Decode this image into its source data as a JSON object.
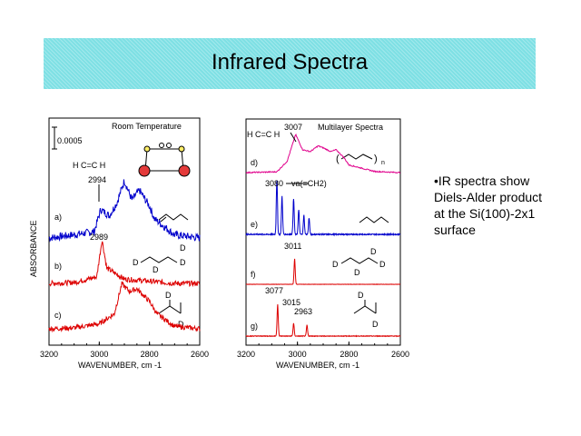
{
  "slide": {
    "title": "Infrared Spectra"
  },
  "bullets": {
    "lines": [
      "•IR spectra show",
      "Diels-Alder product",
      "at the Si(100)-2x1",
      "surface"
    ]
  },
  "colors": {
    "title_bg": "#7ee0e4",
    "blue": "#0000cc",
    "red": "#dd0000",
    "magenta": "#e0008c"
  },
  "chart_data": [
    {
      "type": "line",
      "title": "Room Temperature",
      "xlabel": "WAVENUMBER, cm -1",
      "ylabel": "ABSORBANCE",
      "xlim": [
        3200,
        2600
      ],
      "x_ticks": [
        "3200",
        "3000",
        "2800",
        "2600"
      ],
      "scale_bar": "0.0005",
      "series": [
        {
          "name": "a)",
          "color": "#0000cc",
          "x": [
            3200,
            3100,
            3020,
            2994,
            2960,
            2930,
            2900,
            2870,
            2840,
            2800,
            2780,
            2700,
            2600
          ],
          "y": [
            0,
            0.05,
            0.1,
            0.45,
            0.35,
            0.55,
            0.9,
            0.6,
            0.75,
            0.5,
            0.3,
            0.05,
            0
          ],
          "annotations": [
            "2994"
          ]
        },
        {
          "name": "b)",
          "color": "#dd0000",
          "x": [
            3200,
            3100,
            3010,
            2989,
            2970,
            2900,
            2800,
            2700,
            2600
          ],
          "y": [
            0,
            0.02,
            0.15,
            1.0,
            0.35,
            0.1,
            0.05,
            0,
            0
          ],
          "annotations": [
            "2989"
          ]
        },
        {
          "name": "c)",
          "color": "#dd0000",
          "x": [
            3200,
            3100,
            3000,
            2940,
            2910,
            2880,
            2850,
            2800,
            2770,
            2700,
            2600
          ],
          "y": [
            0,
            0.02,
            0.1,
            0.3,
            0.9,
            0.75,
            0.8,
            0.55,
            0.3,
            0.05,
            0
          ]
        }
      ],
      "annotations": {
        "dimer_top_label": "H C=C H"
      }
    },
    {
      "type": "line",
      "title": "Multilayer Spectra",
      "xlabel": "WAVENUMBER, cm -1",
      "xlim": [
        3200,
        2600
      ],
      "x_ticks": [
        "3200",
        "3000",
        "2800",
        "2600"
      ],
      "series": [
        {
          "name": "d)",
          "color": "#e0008c",
          "x": [
            3200,
            3080,
            3040,
            3007,
            2980,
            2950,
            2920,
            2900,
            2870,
            2850,
            2820,
            2800,
            2700,
            2600
          ],
          "y": [
            0,
            0.02,
            0.3,
            1.0,
            0.6,
            0.55,
            0.7,
            0.65,
            0.55,
            0.6,
            0.4,
            0.2,
            0.03,
            0
          ],
          "annotations": [
            "3007"
          ]
        },
        {
          "name": "e)",
          "color": "#0000cc",
          "x": [
            3095,
            3080,
            3060,
            3015,
            2995,
            2975,
            2955
          ],
          "y": [
            0,
            1.0,
            0.7,
            0.65,
            0.45,
            0.35,
            0.3
          ],
          "annotations": [
            "3080",
            "va(=CH2)"
          ]
        },
        {
          "name": "f)",
          "color": "#dd0000",
          "x": [
            3011
          ],
          "y": [
            1.0
          ],
          "annotations": [
            "3011"
          ]
        },
        {
          "name": "g)",
          "color": "#dd0000",
          "x": [
            3077,
            3015,
            2963
          ],
          "y": [
            1.0,
            0.4,
            0.35
          ],
          "annotations": [
            "3077",
            "3015",
            "2963"
          ]
        }
      ],
      "annotations": {
        "top_molecule": "H C=C H"
      }
    }
  ]
}
